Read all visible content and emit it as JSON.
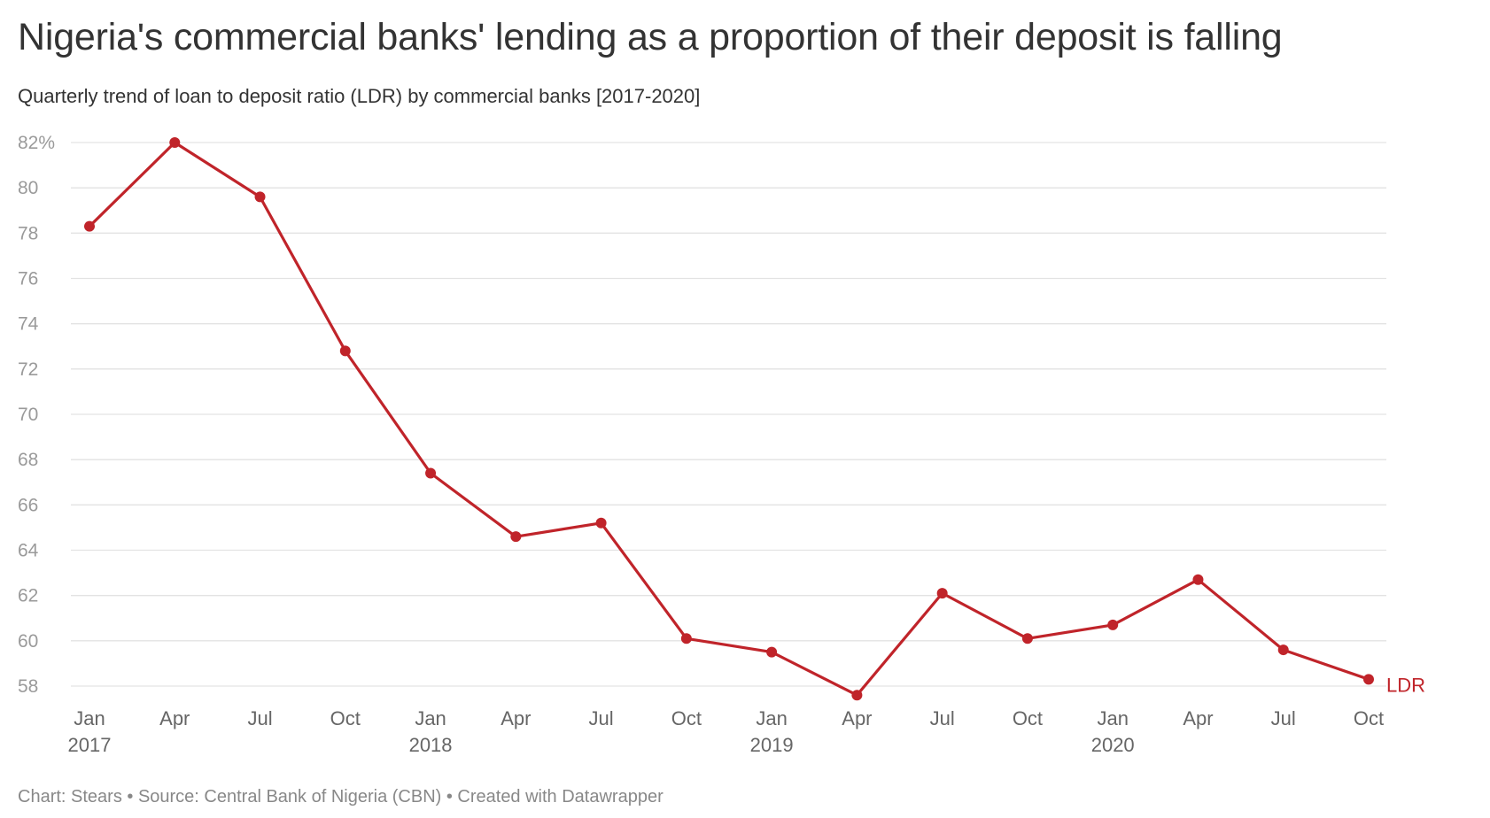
{
  "title": "Nigeria's commercial banks' lending as a proportion of their deposit is falling",
  "subtitle": "Quarterly trend of loan to deposit ratio (LDR) by commercial banks [2017-2020]",
  "footer": "Chart: Stears • Source: Central Bank of Nigeria (CBN) • Created with Datawrapper",
  "chart_data": {
    "type": "line",
    "title": "Nigeria's commercial banks' lending as a proportion of their deposit is falling",
    "subtitle": "Quarterly trend of loan to deposit ratio (LDR) by commercial banks [2017-2020]",
    "xlabel": "",
    "ylabel": "",
    "x": [
      "2017-01",
      "2017-04",
      "2017-07",
      "2017-10",
      "2018-01",
      "2018-04",
      "2018-07",
      "2018-10",
      "2019-01",
      "2019-04",
      "2019-07",
      "2019-10",
      "2020-01",
      "2020-04",
      "2020-07",
      "2020-10"
    ],
    "x_tick_labels": [
      {
        "month": "Jan",
        "year": "2017"
      },
      {
        "month": "Apr",
        "year": ""
      },
      {
        "month": "Jul",
        "year": ""
      },
      {
        "month": "Oct",
        "year": ""
      },
      {
        "month": "Jan",
        "year": "2018"
      },
      {
        "month": "Apr",
        "year": ""
      },
      {
        "month": "Jul",
        "year": ""
      },
      {
        "month": "Oct",
        "year": ""
      },
      {
        "month": "Jan",
        "year": "2019"
      },
      {
        "month": "Apr",
        "year": ""
      },
      {
        "month": "Jul",
        "year": ""
      },
      {
        "month": "Oct",
        "year": ""
      },
      {
        "month": "Jan",
        "year": "2020"
      },
      {
        "month": "Apr",
        "year": ""
      },
      {
        "month": "Jul",
        "year": ""
      },
      {
        "month": "Oct",
        "year": ""
      }
    ],
    "series": [
      {
        "name": "LDR",
        "color": "#c0242a",
        "values": [
          78.3,
          82.0,
          79.6,
          72.8,
          67.4,
          64.6,
          65.2,
          60.1,
          59.5,
          57.6,
          62.1,
          60.1,
          60.7,
          62.7,
          59.6,
          58.3
        ]
      }
    ],
    "y_ticks": [
      58,
      60,
      62,
      64,
      66,
      68,
      70,
      72,
      74,
      76,
      78,
      80,
      82
    ],
    "y_tick_labels": [
      "58",
      "60",
      "62",
      "64",
      "66",
      "68",
      "70",
      "72",
      "74",
      "76",
      "78",
      "80",
      "82%"
    ],
    "ylim": [
      58,
      82
    ],
    "grid": true,
    "legend": "none (series labeled inline at line end)"
  }
}
